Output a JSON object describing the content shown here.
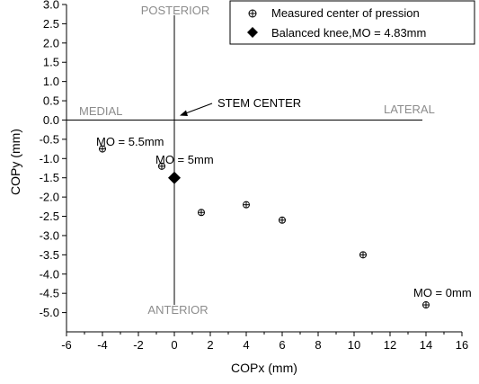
{
  "chart_data": {
    "type": "scatter",
    "xlabel": "COPx (mm)",
    "ylabel": "COPy (mm)",
    "xlim": [
      -6,
      16
    ],
    "ylim": [
      -5.5,
      3.0
    ],
    "x_ticks": [
      -6,
      -4,
      -2,
      0,
      2,
      4,
      6,
      8,
      10,
      12,
      14,
      16
    ],
    "y_ticks": [
      3.0,
      2.5,
      2.0,
      1.5,
      1.0,
      0.5,
      0.0,
      -0.5,
      -1.0,
      -1.5,
      -2.0,
      -2.5,
      -3.0,
      -3.5,
      -4.0,
      -4.5,
      -5.0
    ],
    "x_tick_labels": [
      "-6",
      "-4",
      "-2",
      "0",
      "2",
      "4",
      "6",
      "8",
      "10",
      "12",
      "14",
      "16"
    ],
    "y_tick_labels": [
      "3.0",
      "2.5",
      "2.0",
      "1.5",
      "1.0",
      "0.5",
      "0.0",
      "-0.5",
      "-1.0",
      "-1.5",
      "-2.0",
      "-2.5",
      "-3.0",
      "-3.5",
      "-4.0",
      "-4.5",
      "-5.0"
    ],
    "legend_position": "top-right",
    "grid": false,
    "series": [
      {
        "name": "Measured center of pression",
        "marker": "circle-plus",
        "points": [
          {
            "x": -4.0,
            "y": -0.75
          },
          {
            "x": -0.7,
            "y": -1.2
          },
          {
            "x": 1.5,
            "y": -2.4
          },
          {
            "x": 4.0,
            "y": -2.2
          },
          {
            "x": 6.0,
            "y": -2.6
          },
          {
            "x": 10.5,
            "y": -3.5
          },
          {
            "x": 14.0,
            "y": -4.8
          }
        ]
      },
      {
        "name": "Balanced knee,MO = 4.83mm",
        "marker": "diamond",
        "points": [
          {
            "x": 0.0,
            "y": -1.5
          }
        ]
      }
    ],
    "reference_lines": [
      {
        "axis": "x",
        "value": 0
      },
      {
        "axis": "y",
        "value": 0
      }
    ],
    "annotations": {
      "posterior": "POSTERIOR",
      "anterior": "ANTERIOR",
      "medial": "MEDIAL",
      "lateral": "LATERAL",
      "stem_center": "STEM CENTER",
      "mo_55": "MO = 5.5mm",
      "mo_5": "MO = 5mm",
      "mo_0": "MO = 0mm"
    }
  },
  "colors": {
    "axis": "#000000",
    "region_label": "#8c8c8c",
    "marker_fill": "#000000",
    "background": "#ffffff"
  }
}
